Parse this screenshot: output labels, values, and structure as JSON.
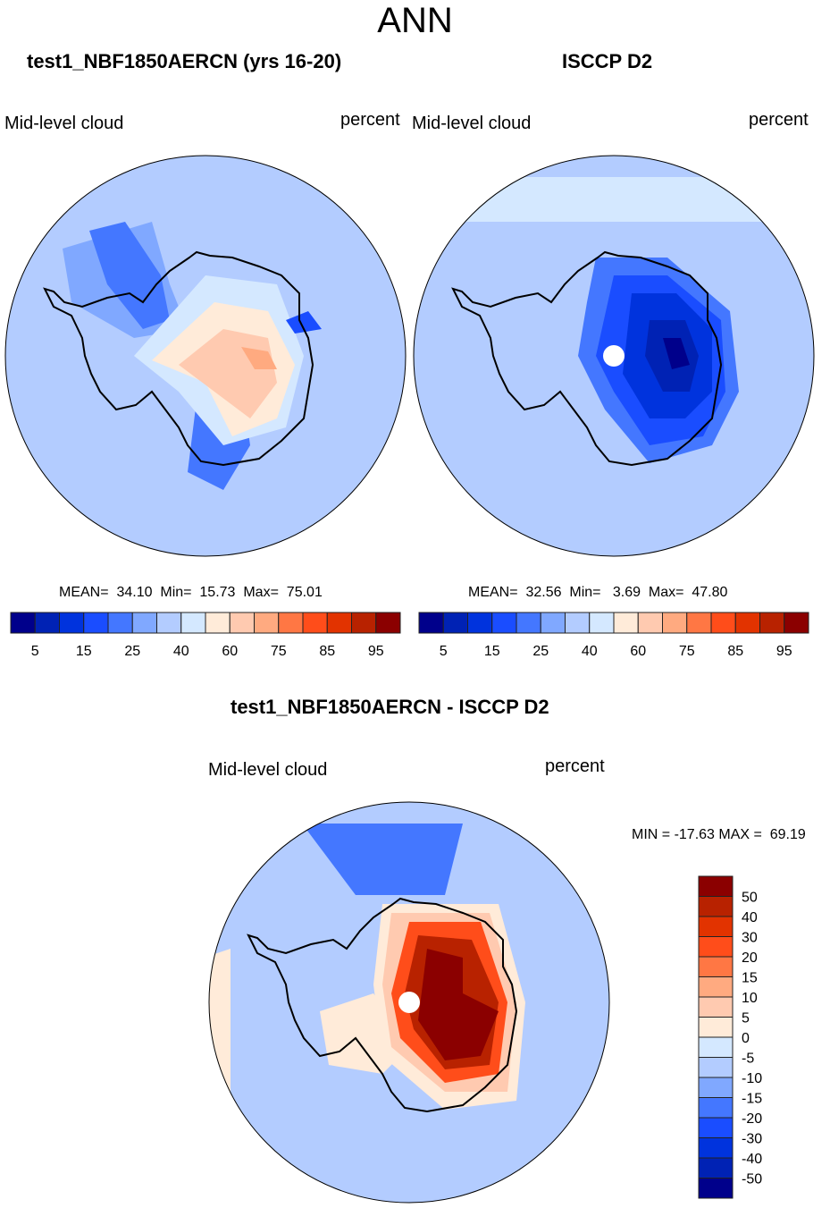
{
  "title": "ANN",
  "chart_data": [
    {
      "type": "heatmap",
      "projection": "south-polar-stereographic",
      "title": "test1_NBF1850AERCN (yrs 16-20)",
      "left_label": "Mid-level cloud",
      "right_label": "percent",
      "stats": {
        "mean": "34.10",
        "min": "15.73",
        "max": "75.01"
      },
      "stats_text": "MEAN=  34.10  Min=  15.73  Max=  75.01",
      "colorbar": {
        "orientation": "horizontal",
        "levels": [
          5,
          10,
          15,
          20,
          25,
          30,
          40,
          50,
          60,
          70,
          75,
          80,
          85,
          90,
          95
        ],
        "tick_labels": [
          "5",
          "15",
          "25",
          "40",
          "60",
          "75",
          "85",
          "95"
        ],
        "colors": [
          "#00008b",
          "#0022b4",
          "#0033dd",
          "#1a4dff",
          "#4477ff",
          "#80a8ff",
          "#b3ccff",
          "#d4e8ff",
          "#ffebd9",
          "#ffcab0",
          "#ffaa80",
          "#ff7744",
          "#ff4d1a",
          "#e23300",
          "#b82200",
          "#8b0000"
        ]
      },
      "features": "Antarctica: mostly 30-50%, interior 50-70%; surrounding ocean 25-40%"
    },
    {
      "type": "heatmap",
      "projection": "south-polar-stereographic",
      "title": "ISCCP D2",
      "left_label": "Mid-level cloud",
      "right_label": "percent",
      "stats": {
        "mean": "32.56",
        "min": "3.69",
        "max": "47.80"
      },
      "stats_text": "MEAN=  32.56  Min=   3.69  Max=  47.80",
      "colorbar": {
        "orientation": "horizontal",
        "levels": [
          5,
          10,
          15,
          20,
          25,
          30,
          40,
          50,
          60,
          70,
          75,
          80,
          85,
          90,
          95
        ],
        "tick_labels": [
          "5",
          "15",
          "25",
          "40",
          "60",
          "75",
          "85",
          "95"
        ],
        "colors": [
          "#00008b",
          "#0022b4",
          "#0033dd",
          "#1a4dff",
          "#4477ff",
          "#80a8ff",
          "#b3ccff",
          "#d4e8ff",
          "#ffebd9",
          "#ffcab0",
          "#ffaa80",
          "#ff7744",
          "#ff4d1a",
          "#e23300",
          "#b82200",
          "#8b0000"
        ]
      },
      "features": "East Antarctic interior 5-20%; ocean 30-50%; missing data at pole (white dot)"
    },
    {
      "type": "heatmap",
      "projection": "south-polar-stereographic",
      "title": "test1_NBF1850AERCN - ISCCP D2",
      "left_label": "Mid-level cloud",
      "right_label": "percent",
      "stats": {
        "min": "-17.63",
        "max": "69.19"
      },
      "stats_text": "MIN = -17.63 MAX =  69.19",
      "colorbar": {
        "orientation": "vertical",
        "levels": [
          -50,
          -40,
          -30,
          -20,
          -15,
          -10,
          -5,
          0,
          5,
          10,
          15,
          20,
          30,
          40,
          50
        ],
        "tick_labels": [
          "50",
          "40",
          "30",
          "20",
          "15",
          "10",
          "5",
          "0",
          "-5",
          "-10",
          "-15",
          "-20",
          "-30",
          "-40",
          "-50"
        ],
        "colors": [
          "#8b0000",
          "#b82200",
          "#e23300",
          "#ff4d1a",
          "#ff7744",
          "#ffaa80",
          "#ffcab0",
          "#ffebd9",
          "#d4e8ff",
          "#b3ccff",
          "#80a8ff",
          "#4477ff",
          "#1a4dff",
          "#0033dd",
          "#0022b4",
          "#00008b"
        ]
      },
      "features": "Large positive bias (>50%) over East Antarctic interior; -5 to -15 over ocean"
    }
  ]
}
